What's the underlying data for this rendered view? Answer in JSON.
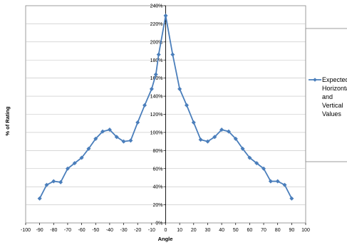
{
  "chart_data": {
    "type": "line",
    "title": "",
    "xlabel": "Angle",
    "ylabel": "% of Rating",
    "xlim": [
      -100,
      100
    ],
    "ylim": [
      0,
      2.4
    ],
    "x_ticks": [
      "-100",
      "-90",
      "-80",
      "-70",
      "-60",
      "-50",
      "-40",
      "-30",
      "-20",
      "-10",
      "0",
      "10",
      "20",
      "30",
      "40",
      "50",
      "60",
      "70",
      "80",
      "90",
      "100"
    ],
    "y_ticks": [
      "0%",
      "20%",
      "40%",
      "60%",
      "80%",
      "100%",
      "120%",
      "140%",
      "160%",
      "180%",
      "200%",
      "220%",
      "240%"
    ],
    "grid": "horizontal",
    "legend_position": "right",
    "legend_lines": [
      "Expected",
      "Horizontal",
      "and",
      "Vertical",
      "Values"
    ],
    "series": [
      {
        "name": "Expected Horizontal and Vertical Values",
        "color": "#4a7ebb",
        "marker": "diamond",
        "points": [
          [
            -90,
            0.27
          ],
          [
            -85,
            0.42
          ],
          [
            -80,
            0.46
          ],
          [
            -75,
            0.45
          ],
          [
            -70,
            0.6
          ],
          [
            -65,
            0.66
          ],
          [
            -60,
            0.72
          ],
          [
            -55,
            0.82
          ],
          [
            -50,
            0.93
          ],
          [
            -45,
            1.01
          ],
          [
            -40,
            1.03
          ],
          [
            -35,
            0.95
          ],
          [
            -30,
            0.9
          ],
          [
            -25,
            0.91
          ],
          [
            -20,
            1.11
          ],
          [
            -15,
            1.3
          ],
          [
            -10,
            1.48
          ],
          [
            -7,
            1.64
          ],
          [
            -5,
            1.86
          ],
          [
            0,
            2.29
          ],
          [
            5,
            1.86
          ],
          [
            10,
            1.48
          ],
          [
            15,
            1.3
          ],
          [
            20,
            1.11
          ],
          [
            25,
            0.92
          ],
          [
            30,
            0.9
          ],
          [
            35,
            0.95
          ],
          [
            40,
            1.03
          ],
          [
            45,
            1.01
          ],
          [
            50,
            0.93
          ],
          [
            55,
            0.82
          ],
          [
            60,
            0.72
          ],
          [
            65,
            0.66
          ],
          [
            70,
            0.6
          ],
          [
            75,
            0.46
          ],
          [
            80,
            0.46
          ],
          [
            85,
            0.42
          ],
          [
            90,
            0.27
          ]
        ]
      }
    ]
  }
}
